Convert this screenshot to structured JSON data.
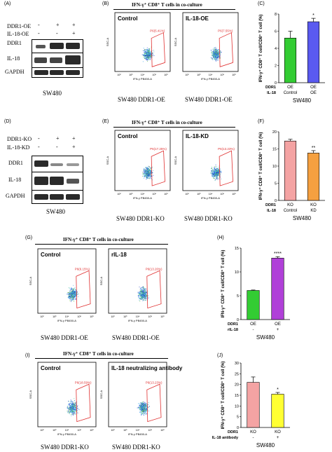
{
  "panels": {
    "A": {
      "label": "(A)",
      "rows": [
        {
          "name": "DDR1-OE",
          "marks": [
            "-",
            "+",
            "+"
          ]
        },
        {
          "name": "IL-18-OE",
          "marks": [
            "-",
            "-",
            "+"
          ]
        }
      ],
      "bands": [
        "DDR1",
        "IL-18",
        "GAPDH"
      ],
      "caption": "SW480"
    },
    "B": {
      "label": "(B)",
      "title": "IFN-γ⁺ CD8⁺ T cells in co-culture",
      "plots": [
        {
          "name": "Control",
          "gate": "P6(5.41%)"
        },
        {
          "name": "IL-18-OE",
          "gate": "P6(7.55%)"
        }
      ],
      "x_axis": "IFN-γ PB450-A",
      "y_axis": "SSC-A",
      "captions": [
        "SW480 DDR1-OE",
        "SW480 DDR1-OE"
      ]
    },
    "C": {
      "label": "(C)",
      "ylabel": "IFN-γ⁺ CD8⁺ T cell/CD8⁺ T cell (%)",
      "row_labels": [
        "DDR1",
        "IL-18"
      ],
      "caption": "SW480"
    },
    "D": {
      "label": "(D)",
      "rows": [
        {
          "name": "DDR1-KO",
          "marks": [
            "-",
            "+",
            "+"
          ]
        },
        {
          "name": "IL-18-KD",
          "marks": [
            "-",
            "-",
            "+"
          ]
        }
      ],
      "bands": [
        "DDR1",
        "IL-18",
        "GAPDH"
      ],
      "caption": "SW480"
    },
    "E": {
      "label": "(E)",
      "title": "IFN-γ⁺ CD8⁺ T cells in co-culture",
      "plots": [
        {
          "name": "Control",
          "gate": "P6(17.25%)"
        },
        {
          "name": "IL-18-KD",
          "gate": "P6(13.23%)"
        }
      ],
      "x_axis": "IFN-γ PB450-A",
      "y_axis": "SSC-A",
      "captions": [
        "SW480 DDR1-KO",
        "SW480 DDR1-KO"
      ]
    },
    "F": {
      "label": "(F)",
      "ylabel": "IFN-γ⁺ CD8⁺ T cell/CD8⁺ T cell (%)",
      "row_labels": [
        "DDR1",
        "IL-18"
      ],
      "caption": "SW480"
    },
    "G": {
      "label": "(G)",
      "title": "IFN-γ⁺ CD8⁺ T cells in co-culture",
      "plots": [
        {
          "name": "Control",
          "gate": "P6(6.15%)"
        },
        {
          "name": "rIL-18",
          "gate": "P6(13.20%)"
        }
      ],
      "x_axis": "IFN-γ PB450-A",
      "y_axis": "SSC-A",
      "captions": [
        "SW480 DDR1-OE",
        "SW480 DDR1-OE"
      ]
    },
    "H": {
      "label": "(H)",
      "ylabel": "IFN-γ⁺ CD8⁺ T cell/CD8⁺ T cell (%)",
      "row_labels": [
        "DDR1",
        "rIL-18"
      ],
      "caption": "SW480"
    },
    "I": {
      "label": "(I)",
      "title": "IFN-γ⁺ CD8⁺ T cells in co-culture",
      "plots": [
        {
          "name": "Control",
          "gate": "P6(18.59%)"
        },
        {
          "name": "IL-18 neutralizing antibody",
          "gate": "P6(13.23%)"
        }
      ],
      "x_axis": "IFN-γ PB450-A",
      "y_axis": "SSC-A",
      "captions": [
        "SW480 DDR1-KO",
        "SW480 DDR1-KO"
      ]
    },
    "J": {
      "label": "(J)",
      "ylabel": "IFN-γ⁺ CD8⁺ T cell/CD8⁺ T cell (%)",
      "row_labels": [
        "DDR1",
        "IL-18 antibody"
      ],
      "caption": "SW480"
    }
  },
  "chart_data": [
    {
      "type": "bar",
      "panel": "C",
      "categories": [
        "OE / Control",
        "OE / OE"
      ],
      "cat_top": [
        "OE",
        "OE"
      ],
      "cat_bottom": [
        "Control",
        "OE"
      ],
      "values": [
        5.2,
        7.1
      ],
      "errors": [
        0.8,
        0.4
      ],
      "colors": [
        "#33cc33",
        "#5a5af0"
      ],
      "significance": [
        "",
        "*"
      ],
      "ylim": [
        0,
        8
      ],
      "yticks": [
        0,
        2,
        4,
        6,
        8
      ]
    },
    {
      "type": "bar",
      "panel": "F",
      "categories": [
        "KO / Control",
        "KO / KD"
      ],
      "cat_top": [
        "KO",
        "KO"
      ],
      "cat_bottom": [
        "Control",
        "KD"
      ],
      "values": [
        17.3,
        13.8
      ],
      "errors": [
        0.5,
        0.7
      ],
      "colors": [
        "#f4a3a3",
        "#f5a040"
      ],
      "significance": [
        "",
        "**"
      ],
      "ylim": [
        0,
        20
      ],
      "yticks": [
        0,
        5,
        10,
        15,
        20
      ]
    },
    {
      "type": "bar",
      "panel": "H",
      "categories": [
        "OE / -",
        "OE / +"
      ],
      "cat_top": [
        "OE",
        "OE"
      ],
      "cat_bottom": [
        "-",
        "+"
      ],
      "values": [
        6.1,
        12.9
      ],
      "errors": [
        0.1,
        0.3
      ],
      "colors": [
        "#33cc33",
        "#b040d8"
      ],
      "significance": [
        "",
        "****"
      ],
      "ylim": [
        0,
        15
      ],
      "yticks": [
        0,
        5,
        10,
        15
      ]
    },
    {
      "type": "bar",
      "panel": "J",
      "categories": [
        "KO / -",
        "KO / +"
      ],
      "cat_top": [
        "KO",
        "KO"
      ],
      "cat_bottom": [
        "-",
        "+"
      ],
      "values": [
        21.0,
        15.5
      ],
      "errors": [
        2.5,
        0.8
      ],
      "colors": [
        "#f4a3a3",
        "#ffff33"
      ],
      "significance": [
        "",
        "*"
      ],
      "ylim": [
        0,
        30
      ],
      "yticks": [
        0,
        5,
        10,
        15,
        20,
        25,
        30
      ]
    }
  ],
  "flow_ticks": [
    "10²",
    "10³",
    "10⁴",
    "10⁵",
    "10⁶"
  ]
}
